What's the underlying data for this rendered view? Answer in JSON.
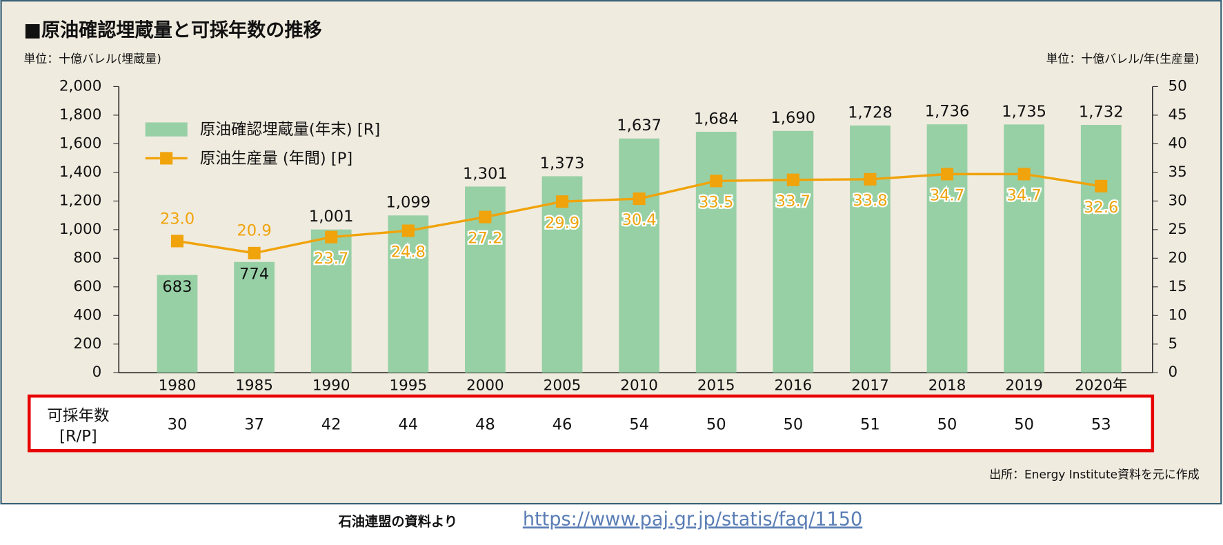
{
  "chart_data": {
    "type": "bar-line",
    "title": "■原油確認埋蔵量と可採年数の推移",
    "y_label": "単位：十億バレル(埋蔵量)",
    "y2_label": "単位：十億バレル/年(生産量)",
    "categories": [
      "1980",
      "1985",
      "1990",
      "1995",
      "2000",
      "2005",
      "2010",
      "2015",
      "2016",
      "2017",
      "2018",
      "2019",
      "2020年"
    ],
    "series": [
      {
        "name": "原油確認埋蔵量(年末) [R]",
        "color": "#97d0a5",
        "type": "bar",
        "values": [
          683,
          774,
          1001,
          1099,
          1301,
          1373,
          1637,
          1684,
          1690,
          1728,
          1736,
          1735,
          1732
        ],
        "value_labels": [
          "683",
          "774",
          "1,001",
          "1,099",
          "1,301",
          "1,373",
          "1,637",
          "1,684",
          "1,690",
          "1,728",
          "1,736",
          "1,735",
          "1,732"
        ]
      },
      {
        "name": "原油生産量 (年間) [P]",
        "color": "#f0a30a",
        "type": "line",
        "axis": "y2",
        "values": [
          23.0,
          20.9,
          23.7,
          24.8,
          27.2,
          29.9,
          30.4,
          33.5,
          33.7,
          33.8,
          34.7,
          34.7,
          32.6
        ],
        "value_labels": [
          "23.0",
          "20.9",
          "23.7",
          "24.8",
          "27.2",
          "29.9",
          "30.4",
          "33.5",
          "33.7",
          "33.8",
          "34.7",
          "34.7",
          "32.6"
        ]
      }
    ],
    "ylim": [
      0,
      2000
    ],
    "yticks": [
      0,
      200,
      400,
      600,
      800,
      {
        "value": 1000,
        "label": "1,000"
      },
      {
        "value": 1200,
        "label": "1,200"
      },
      {
        "value": 1400,
        "label": "1,400"
      },
      {
        "value": 1600,
        "label": "1,600"
      },
      {
        "value": 1800,
        "label": "1,800"
      },
      {
        "value": 2000,
        "label": "2,000"
      }
    ],
    "y2lim": [
      0,
      50
    ],
    "y2ticks": [
      0,
      5,
      10,
      15,
      20,
      25,
      30,
      35,
      40,
      45,
      50
    ],
    "rp_label": [
      "可採年数",
      "[R/P]"
    ],
    "rp_values": [
      30,
      37,
      42,
      44,
      48,
      46,
      54,
      50,
      50,
      51,
      50,
      50,
      53
    ],
    "source": "出所：Energy Institute資料を元に作成"
  },
  "footer": {
    "note": "石油連盟の資料より",
    "url": "https://www.paj.gr.jp/statis/faq/1150"
  }
}
